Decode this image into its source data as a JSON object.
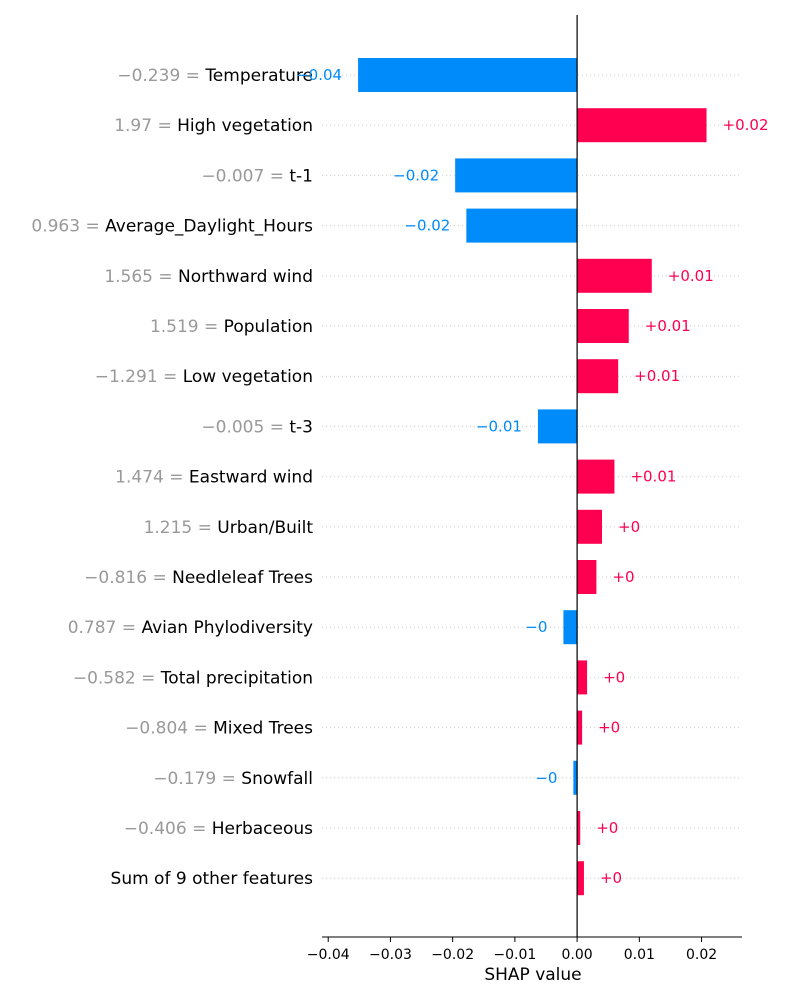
{
  "chart_data": {
    "type": "bar",
    "orientation": "horizontal",
    "xlabel": "SHAP value",
    "xlim": [
      -0.041,
      0.0265
    ],
    "xticks": [
      -0.04,
      -0.03,
      -0.02,
      -0.01,
      0.0,
      0.01,
      0.02
    ],
    "xtick_labels": [
      "−0.04",
      "−0.03",
      "−0.02",
      "−0.01",
      "0.00",
      "0.01",
      "0.02"
    ],
    "grid": false,
    "colors": {
      "positive": "#ff0051",
      "negative": "#008bfb"
    },
    "features": [
      {
        "value": "−0.239",
        "name": "Temperature",
        "shap": -0.0352,
        "label": "−0.04"
      },
      {
        "value": "1.97",
        "name": "High vegetation",
        "shap": 0.0208,
        "label": "+0.02"
      },
      {
        "value": "−0.007",
        "name": "t-1",
        "shap": -0.0196,
        "label": "−0.02"
      },
      {
        "value": "0.963",
        "name": "Average_Daylight_Hours",
        "shap": -0.0178,
        "label": "−0.02"
      },
      {
        "value": "1.565",
        "name": "Northward wind",
        "shap": 0.012,
        "label": "+0.01"
      },
      {
        "value": "1.519",
        "name": "Population",
        "shap": 0.0083,
        "label": "+0.01"
      },
      {
        "value": "−1.291",
        "name": "Low vegetation",
        "shap": 0.0066,
        "label": "+0.01"
      },
      {
        "value": "−0.005",
        "name": "t-3",
        "shap": -0.0063,
        "label": "−0.01"
      },
      {
        "value": "1.474",
        "name": "Eastward wind",
        "shap": 0.006,
        "label": "+0.01"
      },
      {
        "value": "1.215",
        "name": "Urban/Built",
        "shap": 0.004,
        "label": "+0"
      },
      {
        "value": "−0.816",
        "name": "Needleleaf Trees",
        "shap": 0.0031,
        "label": "+0"
      },
      {
        "value": "0.787",
        "name": "Avian Phylodiversity",
        "shap": -0.0022,
        "label": "−0"
      },
      {
        "value": "−0.582",
        "name": "Total precipitation",
        "shap": 0.0016,
        "label": "+0"
      },
      {
        "value": "−0.804",
        "name": "Mixed Trees",
        "shap": 0.0008,
        "label": "+0"
      },
      {
        "value": "−0.179",
        "name": "Snowfall",
        "shap": -0.0006,
        "label": "−0"
      },
      {
        "value": "−0.406",
        "name": "Herbaceous",
        "shap": 0.0005,
        "label": "+0"
      },
      {
        "value": "",
        "name": "Sum of 9 other features",
        "shap": 0.0011,
        "label": "+0"
      }
    ]
  }
}
